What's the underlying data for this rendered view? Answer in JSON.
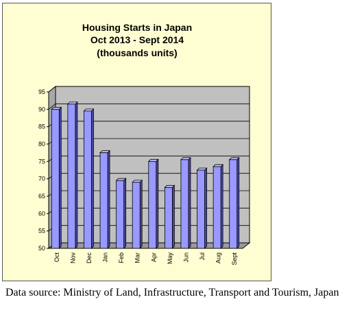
{
  "chart_data": {
    "type": "bar",
    "title_lines": [
      "Housing Starts in Japan",
      "Oct 2013 - Sept 2014",
      "(thousands units)"
    ],
    "categories": [
      "Oct",
      "Nov",
      "Dec",
      "Jan",
      "Feb",
      "Mar",
      "Apr",
      "May",
      "Jun",
      "Jul",
      "Aug",
      "Sept"
    ],
    "values": [
      90,
      91.5,
      89.5,
      77.5,
      69.5,
      69,
      75,
      67.5,
      75.5,
      72.5,
      73.5,
      75.5
    ],
    "ylim": [
      50,
      95
    ],
    "yticks": [
      50,
      55,
      60,
      65,
      70,
      75,
      80,
      85,
      90,
      95
    ],
    "grid": true,
    "legend": "none",
    "colors": {
      "bar_face": "#9999ff",
      "bar_side": "#4a4aa6",
      "bar_top": "#c4c4ff",
      "plot_wall": "#c0c0c0",
      "plot_floor": "#9a9a9a",
      "chart_background": "#fefed2"
    }
  },
  "source_note": "Data source: Ministry of Land, Infrastructure, Transport and Tourism, Japan"
}
